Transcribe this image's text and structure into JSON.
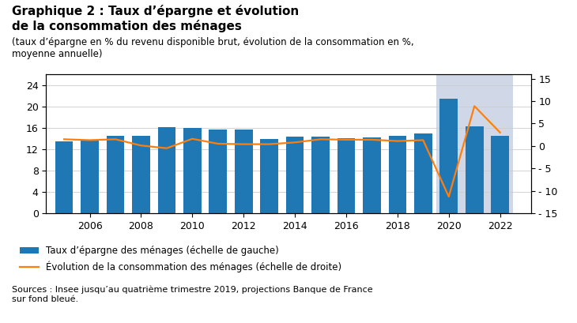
{
  "chart_data": {
    "type": "bar",
    "title": "Graphique 2 : Taux d’épargne et évolution\nde la consommation des ménages",
    "subtitle": "(taux d’épargne en % du revenu disponible brut, évolution de la consommation en %,\nmoyenne annuelle)",
    "source": "Sources : Insee jusqu’au quatrième trimestre 2019, projections Banque de France\nsur fond bleué.",
    "x": [
      2005,
      2006,
      2007,
      2008,
      2009,
      2010,
      2011,
      2012,
      2013,
      2014,
      2015,
      2016,
      2017,
      2018,
      2019,
      2020,
      2021,
      2022
    ],
    "series": [
      {
        "name": "Taux d’épargne des ménages (échelle de gauche)",
        "type": "bar",
        "values": [
          13.4,
          13.8,
          14.5,
          14.5,
          16.1,
          16.0,
          15.6,
          15.6,
          13.9,
          14.4,
          14.3,
          14.1,
          14.2,
          14.5,
          14.9,
          21.4,
          16.2,
          14.5
        ]
      },
      {
        "name": "Évolution de la consommation des ménages (échelle de droite)",
        "type": "line",
        "axis": "y2",
        "values": [
          1.5,
          1.3,
          1.5,
          0.1,
          -0.5,
          1.6,
          0.5,
          0.4,
          0.4,
          0.8,
          1.5,
          1.4,
          1.4,
          1.1,
          1.3,
          -11.3,
          8.9,
          3.0
        ]
      }
    ],
    "shaded_region": [
      2019.5,
      2022.5
    ],
    "shaded_color": "#d0d8e8",
    "xlim": [
      2004.3,
      2023.2
    ],
    "xticks": [
      2006,
      2008,
      2010,
      2012,
      2014,
      2016,
      2018,
      2020,
      2022
    ],
    "ylim": [
      0,
      26
    ],
    "yticks": [
      0,
      4,
      8,
      12,
      16,
      20,
      24
    ],
    "y2lim": [
      -15,
      16
    ],
    "y2ticks": [
      {
        "value": -15,
        "label": "- 15"
      },
      {
        "value": -10,
        "label": "- 10"
      },
      {
        "value": -5,
        "label": "- 5"
      },
      0,
      5,
      10,
      15
    ],
    "grid": "y",
    "legend": "upper left"
  }
}
